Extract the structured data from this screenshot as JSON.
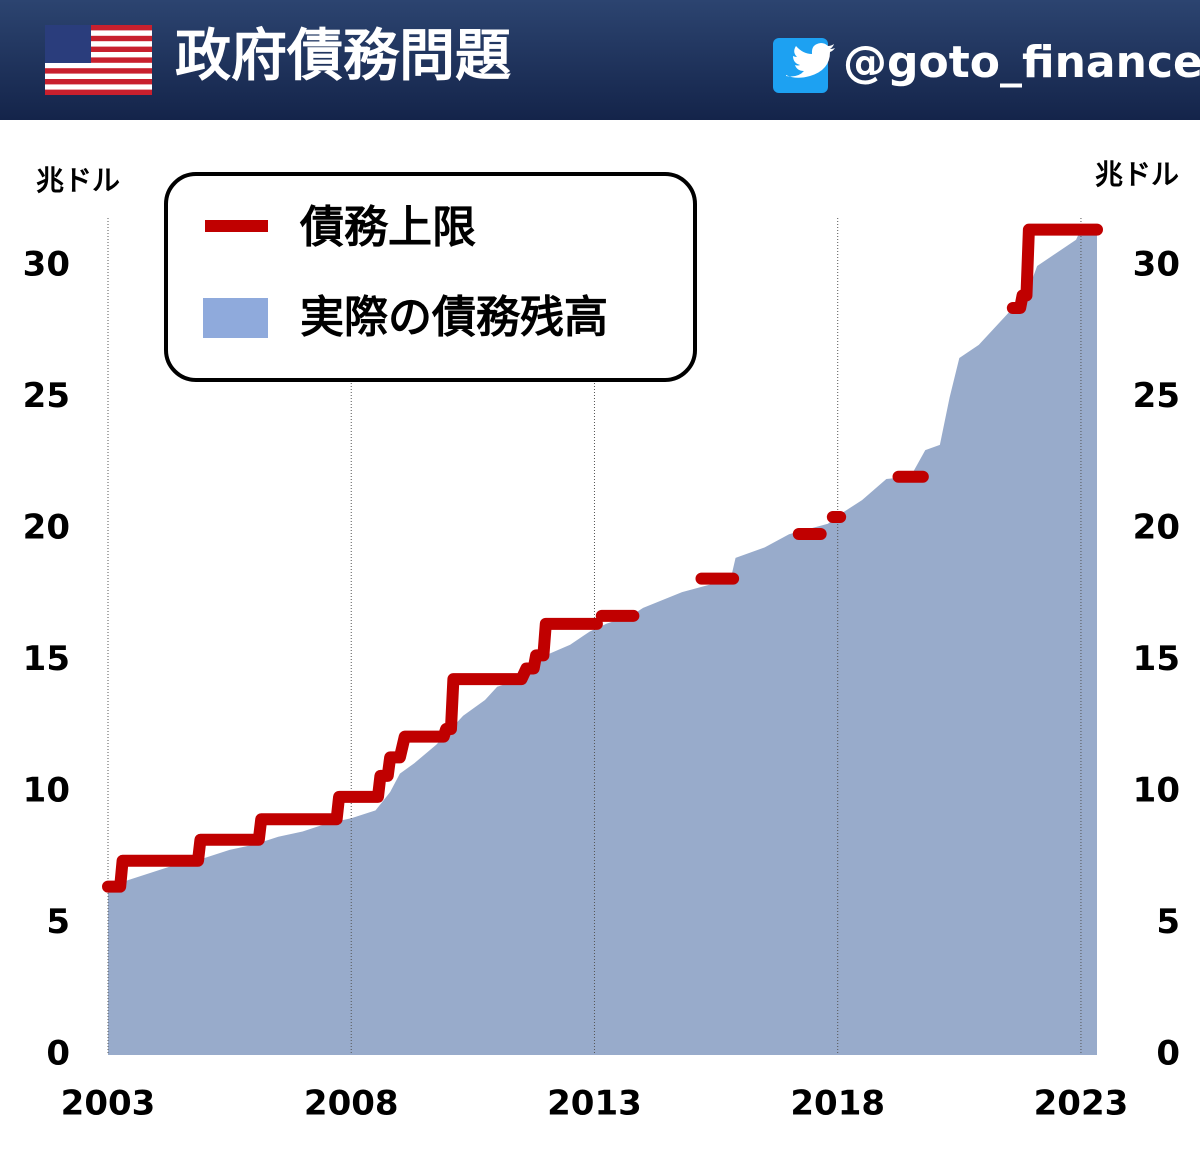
{
  "header": {
    "title": "政府債務問題",
    "handle": "@goto_finance"
  },
  "chart_data": {
    "type": "area-step",
    "y_unit": "兆ドル",
    "xlim": [
      2003,
      2023.33
    ],
    "xticks": [
      2003,
      2008,
      2013,
      2018,
      2023
    ],
    "ylim": [
      0,
      32
    ],
    "yticks": [
      0,
      5,
      10,
      15,
      20,
      25,
      30
    ],
    "grid": "x",
    "series": [
      {
        "name": "債務上限",
        "kind": "line",
        "color": "#c00000",
        "x": [
          2003.0,
          2003.25,
          2003.3,
          2004.85,
          2004.9,
          2006.1,
          2006.15,
          2007.7,
          2007.75,
          2008.55,
          2008.6,
          2008.75,
          2008.8,
          2009.0,
          2009.1,
          2009.9,
          2009.95,
          2010.05,
          2010.1,
          2011.5,
          2011.6,
          2011.75,
          2011.8,
          2011.95,
          2012.0,
          2013.05,
          null,
          2013.15,
          2013.8,
          null,
          2015.2,
          2015.85,
          null,
          2017.2,
          2017.65,
          null,
          2017.9,
          2018.05,
          null,
          2019.25,
          2019.75,
          null,
          2021.6,
          2021.75,
          2021.8,
          2021.88,
          2021.93,
          2023.33
        ],
        "values": [
          6.4,
          6.4,
          7.384,
          7.384,
          8.184,
          8.184,
          8.965,
          8.965,
          9.815,
          9.815,
          10.615,
          10.615,
          11.315,
          11.315,
          12.104,
          12.104,
          12.394,
          12.394,
          14.294,
          14.294,
          14.694,
          14.694,
          15.194,
          15.194,
          16.394,
          16.394,
          null,
          16.699,
          16.699,
          null,
          18.113,
          18.113,
          null,
          19.808,
          19.808,
          null,
          20.456,
          20.456,
          null,
          21.988,
          21.988,
          null,
          28.401,
          28.401,
          28.881,
          28.881,
          31.381,
          31.381
        ]
      },
      {
        "name": "実際の債務残高",
        "kind": "area",
        "color": "#98abcb",
        "x": [
          2003.0,
          2003.5,
          2004.0,
          2004.5,
          2005.0,
          2005.5,
          2006.0,
          2006.5,
          2007.0,
          2007.5,
          2008.0,
          2008.5,
          2008.8,
          2009.0,
          2009.3,
          2009.75,
          2010.0,
          2010.3,
          2010.75,
          2011.0,
          2011.5,
          2011.75,
          2012.0,
          2012.5,
          2012.9,
          2013.25,
          2013.75,
          2014.0,
          2014.8,
          2015.8,
          2015.9,
          2016.5,
          2017.0,
          2017.8,
          2018.0,
          2018.5,
          2019.0,
          2019.5,
          2019.8,
          2020.1,
          2020.3,
          2020.5,
          2020.9,
          2021.3,
          2021.6,
          2021.9,
          2022.1,
          2022.5,
          2022.9,
          2023.0,
          2023.33
        ],
        "values": [
          6.4,
          6.7,
          7.0,
          7.3,
          7.5,
          7.8,
          8.0,
          8.3,
          8.5,
          8.8,
          9.0,
          9.3,
          10.0,
          10.7,
          11.1,
          11.8,
          12.3,
          12.9,
          13.5,
          14.0,
          14.3,
          14.8,
          15.2,
          15.6,
          16.1,
          16.4,
          16.7,
          17.0,
          17.6,
          18.1,
          18.9,
          19.3,
          19.8,
          20.2,
          20.5,
          21.1,
          21.9,
          22.0,
          23.0,
          23.2,
          25.0,
          26.5,
          27.0,
          27.8,
          28.4,
          29.0,
          30.0,
          30.5,
          31.0,
          31.4,
          31.4
        ]
      }
    ]
  }
}
